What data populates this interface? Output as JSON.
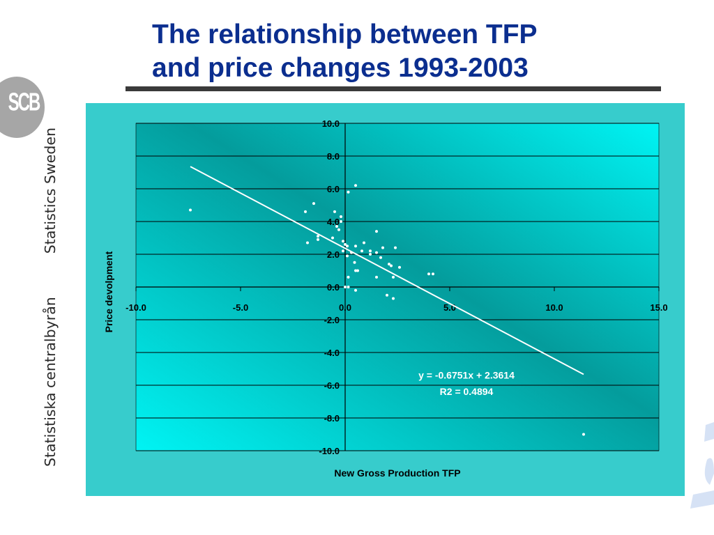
{
  "slide": {
    "title_line1": "The relationship between TFP",
    "title_line2": "and price changes 1993-2003",
    "logo_text": "SCB",
    "side_label_1": "Statistiska centralbyrån",
    "side_label_2": "Statistics Sweden",
    "colors": {
      "title": "#0b2e8f",
      "panel": "#37cccc",
      "plot_light": "#00f4f4",
      "plot_dark": "#049c9c"
    }
  },
  "chart_data": {
    "type": "scatter",
    "xlabel": "New Gross Production TFP",
    "ylabel": "Price devolpment",
    "xlim": [
      -10,
      15
    ],
    "ylim": [
      -10,
      10
    ],
    "x_ticks": [
      "-10.0",
      "-5.0",
      "0.0",
      "5.0",
      "10.0",
      "15.0"
    ],
    "y_ticks": [
      "10.0",
      "8.0",
      "6.0",
      "4.0",
      "2.0",
      "0.0",
      "-2.0",
      "-4.0",
      "-6.0",
      "-8.0",
      "-10.0"
    ],
    "grid": "horizontal",
    "trendline": {
      "x_range": [
        -7.4,
        11.4
      ],
      "slope": -0.6751,
      "intercept": 2.3614
    },
    "annotations": [
      "y = -0.6751x + 2.3614",
      "R2 = 0.4894"
    ],
    "points": [
      [
        -7.4,
        4.7
      ],
      [
        -1.9,
        4.6
      ],
      [
        -1.5,
        5.1
      ],
      [
        -1.8,
        2.7
      ],
      [
        -1.3,
        3.1
      ],
      [
        -1.3,
        2.9
      ],
      [
        -0.5,
        4.6
      ],
      [
        -0.4,
        3.7
      ],
      [
        -0.3,
        3.5
      ],
      [
        -0.2,
        4.3
      ],
      [
        -0.2,
        4.0
      ],
      [
        -0.6,
        3.0
      ],
      [
        -0.1,
        2.8
      ],
      [
        0.0,
        2.6
      ],
      [
        0.1,
        2.5
      ],
      [
        0.15,
        5.8
      ],
      [
        0.5,
        6.2
      ],
      [
        -0.1,
        2.2
      ],
      [
        0.1,
        1.9
      ],
      [
        0.3,
        2.1
      ],
      [
        0.5,
        2.5
      ],
      [
        0.8,
        2.2
      ],
      [
        0.9,
        2.7
      ],
      [
        0.45,
        1.5
      ],
      [
        0.5,
        1.0
      ],
      [
        0.6,
        1.0
      ],
      [
        0.15,
        0.6
      ],
      [
        0.0,
        0.0
      ],
      [
        0.15,
        0.0
      ],
      [
        0.5,
        -0.2
      ],
      [
        1.2,
        2.2
      ],
      [
        1.2,
        2.0
      ],
      [
        1.5,
        2.1
      ],
      [
        1.5,
        3.4
      ],
      [
        1.7,
        1.8
      ],
      [
        1.8,
        2.4
      ],
      [
        2.4,
        2.4
      ],
      [
        2.1,
        1.4
      ],
      [
        2.2,
        1.3
      ],
      [
        2.6,
        1.2
      ],
      [
        1.5,
        0.6
      ],
      [
        2.3,
        0.6
      ],
      [
        2.0,
        -0.5
      ],
      [
        2.3,
        -0.7
      ],
      [
        4.0,
        0.8
      ],
      [
        4.2,
        0.8
      ],
      [
        11.4,
        -9.0
      ]
    ]
  }
}
